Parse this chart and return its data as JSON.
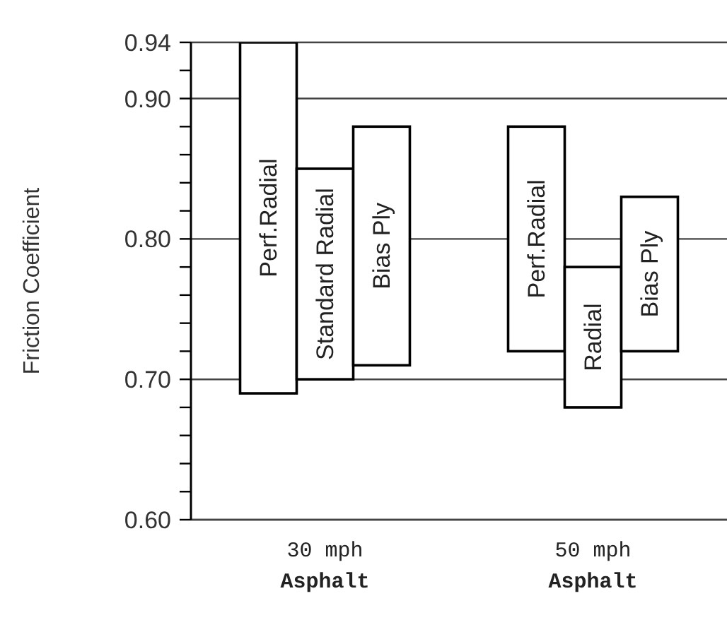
{
  "chart_data": {
    "type": "bar",
    "ylabel": "Friction Coefficient",
    "categories": [
      "30 mph\nAsphalt",
      "50 mph\nAsphalt"
    ],
    "series": [
      {
        "name": "Perf.Radial",
        "color": "#ffffff",
        "base": [
          0.69,
          0.72
        ],
        "values": [
          0.25,
          0.16
        ]
      },
      {
        "name": "Standard Radial",
        "color": "#ffffff",
        "base": [
          0.7,
          null
        ],
        "values": [
          0.15,
          null
        ]
      },
      {
        "name": "Radial",
        "color": "#ffffff",
        "base": [
          null,
          0.68
        ],
        "values": [
          null,
          0.1
        ]
      },
      {
        "name": "Bias Ply",
        "color": "#ffffff",
        "base": [
          0.71,
          0.72
        ],
        "values": [
          0.17,
          0.11
        ]
      }
    ],
    "ylim": [
      0.6,
      0.94
    ],
    "yticks": [
      {
        "value": 0.6,
        "label": "0.60"
      },
      {
        "value": 0.62,
        "label": null
      },
      {
        "value": 0.64,
        "label": null
      },
      {
        "value": 0.66,
        "label": null
      },
      {
        "value": 0.68,
        "label": null
      },
      {
        "value": 0.7,
        "label": "0.70"
      },
      {
        "value": 0.72,
        "label": null
      },
      {
        "value": 0.74,
        "label": null
      },
      {
        "value": 0.76,
        "label": null
      },
      {
        "value": 0.78,
        "label": null
      },
      {
        "value": 0.8,
        "label": "0.80"
      },
      {
        "value": 0.82,
        "label": null
      },
      {
        "value": 0.84,
        "label": null
      },
      {
        "value": 0.86,
        "label": null
      },
      {
        "value": 0.88,
        "label": null
      },
      {
        "value": 0.9,
        "label": "0.90"
      },
      {
        "value": 0.92,
        "label": null
      },
      0.94
    ],
    "grid": "y",
    "legend": false
  }
}
